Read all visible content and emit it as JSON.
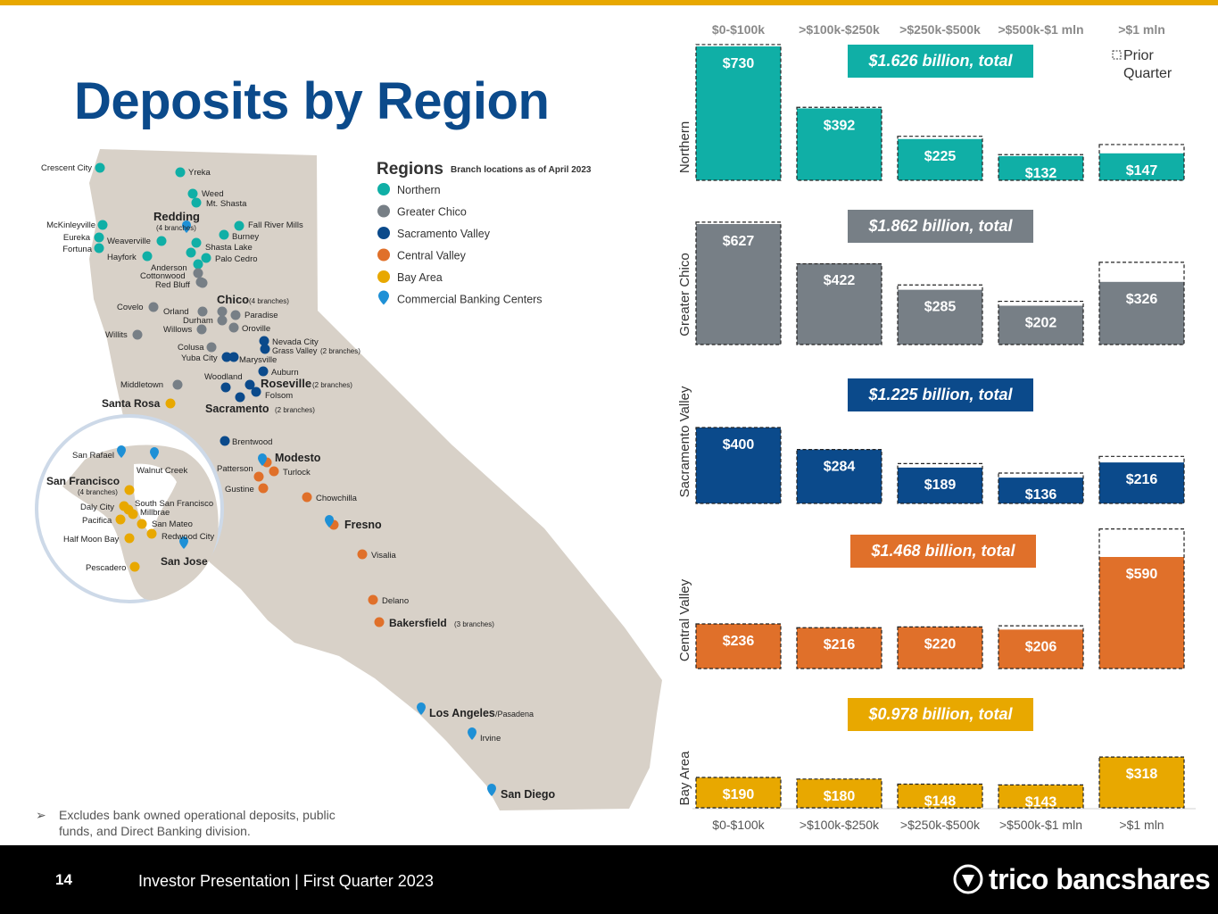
{
  "title": "Deposits by Region",
  "footnote": "Excludes bank owned operational deposits, public funds, and Direct Banking division.",
  "footer": {
    "page_number": "14",
    "text": "Investor Presentation | First Quarter 2023",
    "logo_text": "trico bancshares"
  },
  "legend": {
    "heading": "Regions",
    "subheading": "Branch locations as of April 2023",
    "items": [
      {
        "label": "Northern",
        "color": "#10afa6"
      },
      {
        "label": "Greater Chico",
        "color": "#777f86"
      },
      {
        "label": "Sacramento Valley",
        "color": "#0b4a8b"
      },
      {
        "label": "Central Valley",
        "color": "#e0702a"
      },
      {
        "label": "Bay Area",
        "color": "#e8a800"
      },
      {
        "label": "Commercial Banking Centers",
        "color": "#1e90d6"
      }
    ]
  },
  "prior_quarter_legend": "Prior Quarter",
  "map_labels": {
    "northern": [
      "Crescent City",
      "Yreka",
      "Weed",
      "Mt. Shasta",
      "McKinleyville",
      "Eureka",
      "Fortuna",
      "Weaverville",
      "Hayfork",
      "Fall River Mills",
      "Burney",
      "Shasta Lake",
      "Palo Cedro"
    ],
    "redding": "Redding",
    "redding_note": "(4 branches)",
    "greater_chico": [
      "Anderson",
      "Cottonwood",
      "Red Bluff",
      "Covelo",
      "Willits",
      "Orland",
      "Durham",
      "Willows",
      "Paradise",
      "Oroville",
      "Colusa",
      "Middletown"
    ],
    "chico": "Chico",
    "chico_note": "(4 branches)",
    "sacramento_valley": [
      "Nevada City",
      "Yuba City",
      "Marysville",
      "Woodland",
      "Auburn",
      "Folsom",
      "Brentwood"
    ],
    "grass_valley": "Grass Valley",
    "grass_valley_note": "(2 branches)",
    "roseville": "Roseville",
    "roseville_note": "(2 branches)",
    "sacramento": "Sacramento",
    "sacramento_note": "(2 branches)",
    "central_valley": [
      "Patterson",
      "Turlock",
      "Gustine",
      "Chowchilla",
      "Visalia",
      "Delano"
    ],
    "modesto": "Modesto",
    "fresno": "Fresno",
    "bakersfield": "Bakersfield",
    "bakersfield_note": "(3 branches)",
    "bay_area": [
      "San Rafael",
      "Walnut Creek",
      "Daly City",
      "South San Francisco",
      "Millbrae",
      "Pacifica",
      "San Mateo",
      "Half Moon Bay",
      "Redwood City",
      "Pescadero"
    ],
    "santa_rosa": "Santa Rosa",
    "san_francisco": "San Francisco",
    "san_francisco_note": "(4 branches)",
    "san_jose": "San Jose",
    "los_angeles": "Los Angeles",
    "los_angeles_suffix": "/Pasadena",
    "irvine": "Irvine",
    "san_diego": "San Diego"
  },
  "chart_data": {
    "type": "bar",
    "categories": [
      "$0-$100k",
      ">$100k-$250k",
      ">$250k-$500k",
      ">$500k-$1 mln",
      ">$1 mln"
    ],
    "value_prefix": "$",
    "series": [
      {
        "name": "Northern",
        "color": "#10afa6",
        "total_label": "$1.626 billion, total",
        "values": [
          730,
          392,
          225,
          132,
          147
        ],
        "prior_quarter": [
          740,
          398,
          240,
          140,
          195
        ]
      },
      {
        "name": "Greater Chico",
        "color": "#777f86",
        "total_label": "$1.862 billion, total",
        "values": [
          627,
          422,
          285,
          202,
          326
        ],
        "prior_quarter": [
          637,
          420,
          310,
          225,
          428
        ]
      },
      {
        "name": "Sacramento Valley",
        "color": "#0b4a8b",
        "total_label": "$1.225 billion, total",
        "values": [
          400,
          284,
          189,
          136,
          216
        ],
        "prior_quarter": [
          400,
          284,
          210,
          160,
          248
        ]
      },
      {
        "name": "Central Valley",
        "color": "#e0702a",
        "total_label": "$1.468 billion, total",
        "values": [
          236,
          216,
          220,
          206,
          590
        ],
        "prior_quarter": [
          236,
          216,
          220,
          226,
          738
        ]
      },
      {
        "name": "Bay Area",
        "color": "#e8a800",
        "total_label": "$0.978 billion, total",
        "values": [
          190,
          180,
          148,
          143,
          318
        ],
        "prior_quarter": [
          190,
          180,
          148,
          143,
          318
        ]
      }
    ]
  }
}
